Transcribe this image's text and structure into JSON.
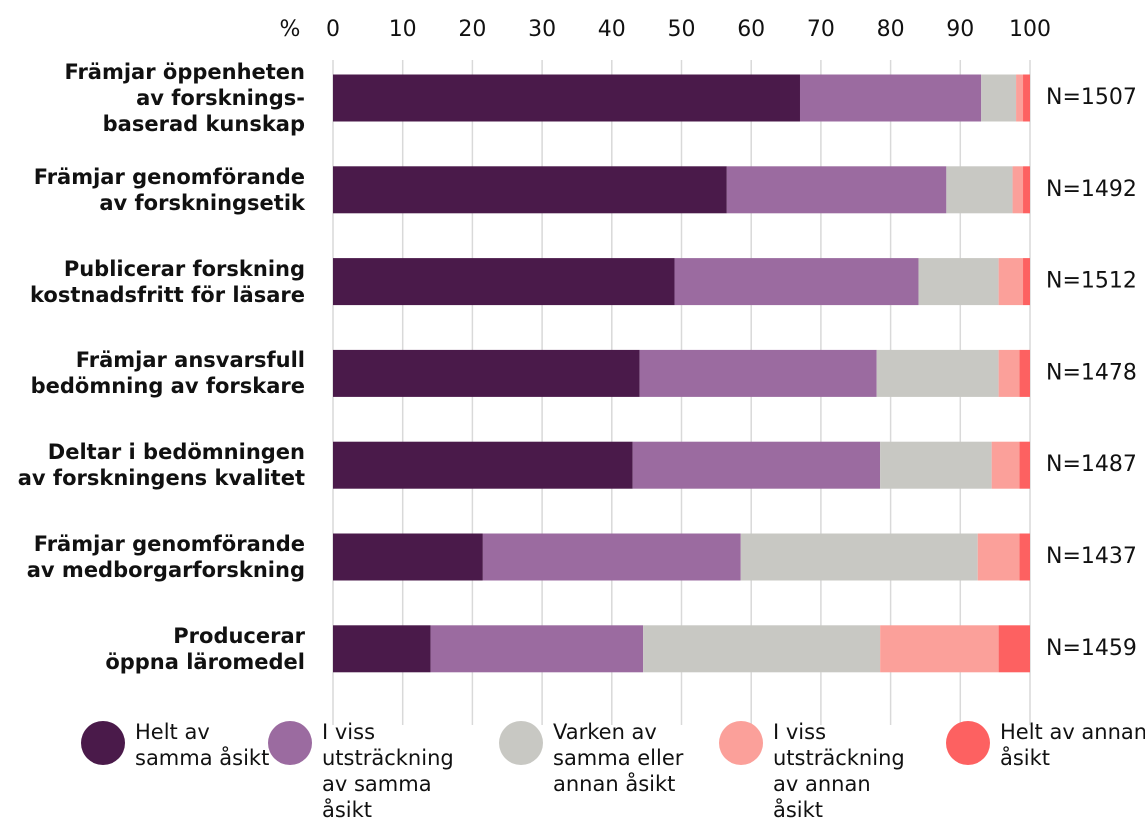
{
  "chart_data": {
    "type": "stacked_bar_horizontal",
    "unit": "%",
    "categories": [
      "Främjar öppenheten\nav forsknings-\nbaserad kunskap",
      "Främjar genomförande\nav forskningsetik",
      "Publicerar forskning\nkostnadsfritt för läsare",
      "Främjar ansvarsfull\nbedömning av forskare",
      "Deltar i bedömningen\nav forskningens kvalitet",
      "Främjar genomförande\nav medborgarforskning",
      "Producerar\nöppna läromedel"
    ],
    "series": [
      {
        "name": "Helt av samma åsikt",
        "color": "#4a1a4a",
        "values": [
          67,
          56.5,
          49,
          44,
          43,
          21.5,
          14
        ]
      },
      {
        "name": "I viss utsträckning av samma åsikt",
        "color": "#9b6ba0",
        "values": [
          26,
          31.5,
          35,
          34,
          35.5,
          37,
          30.5
        ]
      },
      {
        "name": "Varken av samma eller annan åsikt",
        "color": "#c8c8c3",
        "values": [
          5,
          9.5,
          11.5,
          17.5,
          16,
          34,
          34
        ]
      },
      {
        "name": "I viss utsträckning av annan åsikt",
        "color": "#fba09a",
        "values": [
          1,
          1.5,
          3.5,
          3,
          4,
          6,
          17
        ]
      },
      {
        "name": "Helt av annan åsikt",
        "color": "#fd6161",
        "values": [
          1,
          1,
          1,
          1.5,
          1.5,
          1.5,
          4.5
        ]
      }
    ],
    "annotations": [
      "N=1507",
      "N=1492",
      "N=1512",
      "N=1478",
      "N=1487",
      "N=1437",
      "N=1459"
    ],
    "xlim": [
      0,
      100
    ],
    "xticks": [
      0,
      10,
      20,
      30,
      40,
      50,
      60,
      70,
      80,
      90,
      100
    ],
    "grid": true
  }
}
